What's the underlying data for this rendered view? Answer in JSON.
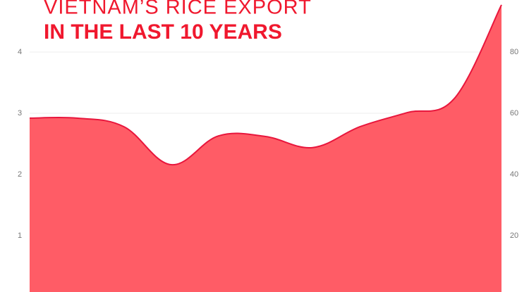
{
  "chart_data": {
    "type": "area",
    "title": "VIETNAM’S RICE EXPORT",
    "subtitle": "IN THE LAST 10 YEARS",
    "categories": [
      null,
      null,
      null,
      null,
      null,
      null,
      null,
      null,
      null,
      null,
      null
    ],
    "series": [
      {
        "color": "#ff5c66",
        "line_color": "#e8163c",
        "values": [
          2.92,
          2.92,
          2.78,
          2.16,
          2.63,
          2.62,
          2.44,
          2.78,
          3.01,
          3.24,
          4.77
        ]
      }
    ],
    "ylim": [
      0,
      4.85
    ],
    "yticks": [
      1,
      2,
      3,
      4
    ],
    "y2lim": [
      0,
      97
    ],
    "y2ticks": [
      20,
      40,
      60,
      80
    ],
    "grid": true
  }
}
